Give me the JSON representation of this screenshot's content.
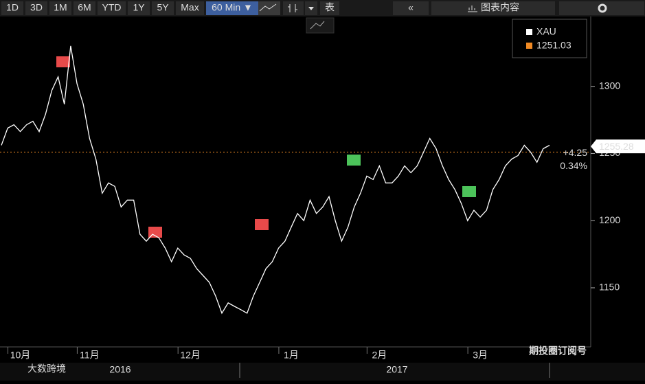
{
  "toolbar": {
    "ranges": [
      "1D",
      "3D",
      "1M",
      "6M",
      "YTD",
      "1Y",
      "5Y",
      "Max"
    ],
    "interval": "60 Min ▼",
    "table": "表",
    "chart_content": "图表内容"
  },
  "watermark_left": "大数跨境",
  "watermark_right": "期投圈订阅号",
  "chart_data": {
    "type": "line",
    "categories": [
      null,
      null,
      null,
      "10月",
      null,
      null,
      null,
      null,
      null,
      null,
      null,
      null,
      null,
      null,
      "11月",
      null,
      null,
      null,
      null,
      null,
      null,
      null,
      null,
      null,
      null,
      null,
      null,
      null,
      null,
      null,
      "12月",
      null,
      null,
      null,
      null,
      null,
      null,
      null,
      null,
      null,
      null,
      null,
      null,
      null,
      null,
      null,
      "1月",
      null,
      null,
      null,
      null,
      null,
      null,
      null,
      null,
      null,
      null,
      null,
      null,
      null,
      "2月",
      null,
      null,
      null,
      null,
      null,
      null,
      null,
      null,
      null,
      null,
      null,
      null,
      null,
      null,
      null,
      "3月",
      null,
      null,
      null,
      null,
      null,
      null,
      null,
      null,
      null,
      null,
      null
    ],
    "x_groups": [
      "2016",
      "2017"
    ],
    "series": [
      {
        "name": "XAU",
        "color": "#ffffff",
        "values": [
          1256.1,
          1268.9,
          1271.4,
          1266.3,
          1271.4,
          1274,
          1266.3,
          1279.1,
          1296.9,
          1307.1,
          1286.7,
          1330.1,
          1302,
          1286.7,
          1261.2,
          1245.9,
          1220.4,
          1228.1,
          1225.5,
          1210.2,
          1215.3,
          1215.3,
          1189.8,
          1184.7,
          1189.8,
          1187.2,
          1179.6,
          1169.4,
          1179.6,
          1174.5,
          1171.9,
          1164.3,
          1159.2,
          1154.1,
          1143.9,
          1131.1,
          1138.8,
          1136.2,
          1133.7,
          1131.1,
          1143.9,
          1154.1,
          1164.3,
          1169.4,
          1179.6,
          1184.7,
          1195.1,
          1205.3,
          1200,
          1215.3,
          1205.3,
          1210.2,
          1217.9,
          1200,
          1184.7,
          1195.1,
          1210.2,
          1220.4,
          1233.2,
          1230.6,
          1240.8,
          1228.1,
          1228.1,
          1233.2,
          1240.8,
          1235.7,
          1240.8,
          1251,
          1261.2,
          1253.6,
          1240.8,
          1230.6,
          1223,
          1212.8,
          1200,
          1207.7,
          1202.6,
          1207.7,
          1223,
          1230.6,
          1240.8,
          1245.9,
          1248.5,
          1256.1,
          1251,
          1243.4,
          1253.6,
          1256.1
        ]
      }
    ],
    "reference_line": {
      "value": 1251.03,
      "color": "#f08a24"
    },
    "last_value": 1255.28,
    "change": {
      "value": 4.25,
      "label": "+4.25"
    },
    "change_pct": {
      "value": 0.34,
      "label": "0.34%"
    },
    "ylim": [
      1106,
      1352
    ],
    "yticks": [
      1150,
      1200,
      1250,
      1300
    ]
  }
}
